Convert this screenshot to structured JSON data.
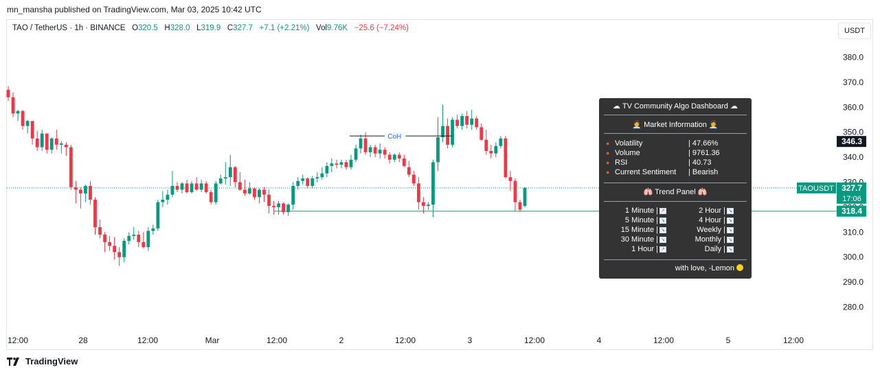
{
  "publisher": "mn_mansha published on TradingView.com, Mar 03, 2025 10:42 UTC",
  "currency_button": "USDT",
  "legend": {
    "symbol": "TAO / TetherUS · 1h · BINANCE",
    "o_label": "O",
    "o_value": "320.5",
    "h_label": "H",
    "h_value": "328.0",
    "l_label": "L",
    "l_value": "319.9",
    "c_label": "C",
    "c_value": "327.7",
    "change": "+7.1 (+2.21%)",
    "vol_label": "Vol",
    "vol_value": "9.76K",
    "vol_change": "−25.6 (−7.24%)"
  },
  "colors": {
    "up": "#089981",
    "down": "#f23645",
    "panel": "#333333"
  },
  "chart_data": {
    "type": "candlestick",
    "ylim": [
      271,
      389
    ],
    "y_ticks": [
      380.0,
      370.0,
      360.0,
      350.0,
      340.0,
      330.0,
      320.0,
      310.0,
      300.0,
      290.0,
      280.0
    ],
    "x_ticks": [
      "12:00",
      "28",
      "12:00",
      "Mar",
      "12:00",
      "2",
      "12:00",
      "3",
      "12:00",
      "4",
      "12:00",
      "5",
      "12:00"
    ],
    "price_labels": {
      "highlight": "346.3",
      "symbol": "TAOUSDT",
      "last": "327.7",
      "countdown": "17:06",
      "level": "318.4"
    },
    "last_price": 327.7,
    "level_price": 318.4,
    "annotation": {
      "text": "CoH",
      "price": 348.5
    },
    "candles": [
      [
        367.0,
        368.5,
        362.5,
        364.0
      ],
      [
        364.0,
        366.0,
        356.0,
        357.5
      ],
      [
        357.5,
        359.0,
        354.5,
        358.5
      ],
      [
        358.5,
        359.0,
        351.0,
        352.5
      ],
      [
        352.5,
        355.0,
        349.5,
        354.5
      ],
      [
        354.5,
        354.5,
        345.0,
        347.5
      ],
      [
        347.5,
        350.5,
        342.5,
        344.0
      ],
      [
        344.0,
        351.0,
        342.5,
        349.5
      ],
      [
        349.5,
        349.5,
        341.5,
        343.0
      ],
      [
        343.0,
        348.0,
        341.5,
        347.5
      ],
      [
        347.5,
        351.0,
        343.0,
        345.0
      ],
      [
        345.0,
        346.5,
        341.5,
        345.5
      ],
      [
        345.0,
        346.0,
        340.5,
        344.0
      ],
      [
        344.0,
        345.0,
        327.0,
        328.0
      ],
      [
        328.0,
        330.5,
        321.5,
        327.0
      ],
      [
        327.0,
        328.0,
        319.5,
        325.5
      ],
      [
        325.5,
        329.0,
        322.0,
        328.5
      ],
      [
        328.5,
        330.5,
        321.0,
        323.0
      ],
      [
        323.0,
        324.0,
        309.0,
        312.0
      ],
      [
        312.0,
        315.0,
        307.5,
        309.0
      ],
      [
        309.0,
        310.0,
        302.0,
        306.0
      ],
      [
        306.0,
        308.5,
        302.5,
        304.5
      ],
      [
        304.5,
        308.0,
        299.0,
        302.0
      ],
      [
        302.0,
        304.0,
        296.5,
        300.0
      ],
      [
        300.0,
        307.5,
        298.0,
        306.5
      ],
      [
        306.5,
        310.0,
        305.0,
        308.5
      ],
      [
        308.5,
        312.0,
        307.0,
        309.0
      ],
      [
        309.0,
        310.5,
        304.0,
        306.0
      ],
      [
        306.0,
        310.0,
        303.5,
        304.0
      ],
      [
        304.0,
        312.0,
        302.5,
        310.5
      ],
      [
        310.5,
        313.0,
        309.0,
        311.5
      ],
      [
        311.5,
        323.0,
        310.5,
        322.0
      ],
      [
        322.0,
        326.5,
        320.0,
        323.0
      ],
      [
        323.0,
        327.0,
        321.0,
        325.0
      ],
      [
        325.0,
        334.5,
        324.0,
        328.5
      ],
      [
        328.5,
        330.0,
        326.0,
        327.0
      ],
      [
        327.0,
        330.0,
        325.5,
        329.5
      ],
      [
        329.5,
        331.0,
        325.5,
        326.0
      ],
      [
        326.0,
        330.5,
        325.5,
        329.5
      ],
      [
        329.5,
        332.0,
        326.5,
        327.0
      ],
      [
        327.0,
        331.0,
        326.0,
        329.5
      ],
      [
        329.5,
        330.5,
        325.5,
        326.0
      ],
      [
        326.0,
        327.0,
        321.0,
        322.0
      ],
      [
        322.0,
        330.5,
        321.0,
        329.5
      ],
      [
        329.5,
        333.0,
        329.0,
        331.5
      ],
      [
        331.5,
        338.0,
        329.0,
        332.0
      ],
      [
        332.0,
        341.0,
        328.5,
        336.0
      ],
      [
        336.0,
        336.5,
        328.0,
        330.0
      ],
      [
        330.0,
        334.0,
        326.5,
        327.0
      ],
      [
        327.0,
        331.0,
        324.5,
        325.5
      ],
      [
        325.5,
        330.0,
        325.0,
        327.5
      ],
      [
        327.5,
        328.0,
        323.0,
        324.0
      ],
      [
        324.0,
        327.5,
        321.5,
        327.0
      ],
      [
        327.0,
        328.0,
        322.0,
        325.0
      ],
      [
        325.0,
        327.0,
        317.5,
        320.5
      ],
      [
        320.5,
        322.5,
        317.0,
        320.0
      ],
      [
        320.0,
        322.5,
        317.0,
        321.5
      ],
      [
        321.5,
        322.0,
        317.0,
        318.0
      ],
      [
        318.0,
        321.5,
        316.5,
        321.0
      ],
      [
        321.0,
        330.0,
        319.0,
        328.5
      ],
      [
        328.5,
        332.0,
        327.0,
        330.5
      ],
      [
        330.5,
        333.0,
        329.0,
        331.5
      ],
      [
        331.5,
        332.0,
        327.5,
        328.5
      ],
      [
        328.5,
        332.5,
        327.5,
        331.5
      ],
      [
        331.5,
        334.0,
        330.0,
        332.0
      ],
      [
        332.0,
        336.0,
        331.0,
        333.5
      ],
      [
        333.5,
        338.0,
        332.0,
        336.5
      ],
      [
        336.5,
        339.5,
        334.0,
        337.5
      ],
      [
        337.5,
        339.0,
        335.5,
        337.0
      ],
      [
        337.0,
        339.0,
        335.5,
        338.0
      ],
      [
        338.0,
        339.0,
        335.0,
        336.0
      ],
      [
        336.0,
        341.0,
        335.0,
        339.0
      ],
      [
        339.0,
        345.0,
        338.0,
        343.5
      ],
      [
        343.5,
        349.0,
        341.5,
        347.5
      ],
      [
        347.5,
        350.0,
        341.0,
        342.0
      ],
      [
        342.0,
        345.0,
        340.0,
        344.0
      ],
      [
        344.0,
        345.0,
        340.0,
        341.5
      ],
      [
        341.5,
        345.5,
        339.5,
        343.0
      ],
      [
        343.0,
        344.0,
        339.5,
        341.0
      ],
      [
        341.0,
        342.0,
        337.5,
        339.0
      ],
      [
        339.0,
        341.5,
        338.0,
        341.0
      ],
      [
        341.0,
        342.0,
        338.0,
        339.5
      ],
      [
        339.5,
        341.0,
        336.0,
        336.5
      ],
      [
        336.0,
        338.5,
        332.0,
        333.0
      ],
      [
        333.0,
        334.5,
        328.5,
        329.5
      ],
      [
        329.5,
        332.0,
        319.0,
        322.0
      ],
      [
        322.0,
        324.0,
        317.5,
        320.5
      ],
      [
        320.5,
        322.0,
        319.0,
        321.0
      ],
      [
        321.0,
        339.0,
        316.0,
        338.0
      ],
      [
        338.0,
        356.0,
        334.5,
        348.0
      ],
      [
        348.0,
        361.0,
        346.0,
        352.5
      ],
      [
        352.5,
        355.5,
        343.5,
        345.0
      ],
      [
        345.0,
        356.0,
        344.0,
        355.0
      ],
      [
        355.0,
        357.0,
        351.5,
        352.5
      ],
      [
        352.5,
        357.5,
        351.0,
        356.5
      ],
      [
        356.5,
        358.5,
        351.5,
        353.0
      ],
      [
        353.0,
        359.0,
        351.0,
        355.5
      ],
      [
        355.5,
        356.5,
        351.0,
        352.0
      ],
      [
        352.0,
        353.5,
        346.5,
        347.0
      ],
      [
        347.0,
        351.0,
        341.0,
        342.5
      ],
      [
        342.5,
        345.0,
        339.5,
        341.5
      ],
      [
        341.5,
        346.0,
        340.0,
        344.5
      ],
      [
        344.5,
        348.5,
        343.5,
        347.5
      ],
      [
        347.5,
        348.5,
        331.5,
        332.0
      ],
      [
        332.0,
        334.5,
        326.5,
        330.5
      ],
      [
        330.5,
        331.5,
        318.5,
        322.0
      ],
      [
        322.0,
        323.0,
        318.0,
        319.0
      ],
      [
        320.5,
        328.0,
        319.9,
        327.7
      ]
    ]
  },
  "dashboard": {
    "title": "TV Community Algo Dashboard",
    "market_header": "Market Information",
    "metrics": [
      {
        "label": "Volatility",
        "value": "| 47.66%"
      },
      {
        "label": "Volume",
        "value": "| 9761.36"
      },
      {
        "label": "RSI",
        "value": "| 40.73"
      },
      {
        "label": "Current Sentiment",
        "value": "| Bearish"
      }
    ],
    "trend_header": "Trend Panel",
    "trends_left": [
      {
        "label": "1 Minute |",
        "dir": "up"
      },
      {
        "label": "5 Minute |",
        "dir": "down"
      },
      {
        "label": "15 Minute |",
        "dir": "down"
      },
      {
        "label": "30 Minute |",
        "dir": "down"
      },
      {
        "label": "1 Hour |",
        "dir": "up"
      }
    ],
    "trends_right": [
      {
        "label": "2 Hour |",
        "dir": "down"
      },
      {
        "label": "4 Hour |",
        "dir": "down"
      },
      {
        "label": "Weekly |",
        "dir": "down"
      },
      {
        "label": "Monthly |",
        "dir": "down"
      },
      {
        "label": "Daily |",
        "dir": "down"
      }
    ],
    "footer": "with love, -Lemon"
  },
  "brand": "TradingView"
}
